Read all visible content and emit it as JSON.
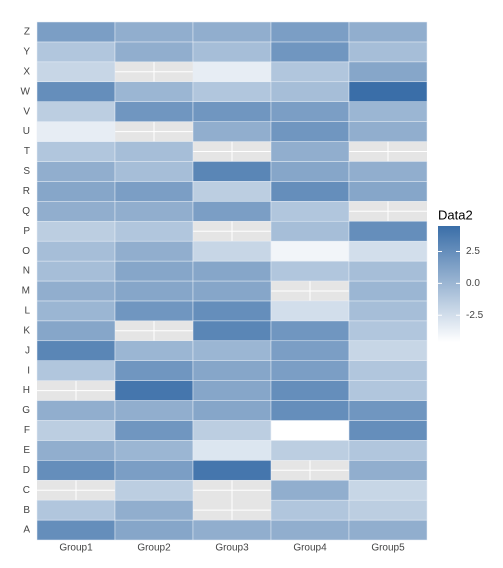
{
  "chart_data": {
    "type": "heatmap",
    "x": [
      "Group1",
      "Group2",
      "Group3",
      "Group4",
      "Group5"
    ],
    "y": [
      "A",
      "B",
      "C",
      "D",
      "E",
      "F",
      "G",
      "H",
      "I",
      "J",
      "K",
      "L",
      "M",
      "N",
      "O",
      "P",
      "Q",
      "R",
      "S",
      "T",
      "U",
      "V",
      "W",
      "X",
      "Y",
      "Z"
    ],
    "values": [
      [
        2.5,
        1,
        0.5,
        0.5,
        0.5
      ],
      [
        -1,
        0.5,
        null,
        -1,
        -1.5
      ],
      [
        null,
        -1.5,
        null,
        0.5,
        -2
      ],
      [
        2.5,
        1.5,
        4,
        null,
        0.5
      ],
      [
        0.5,
        0,
        -3,
        -1.5,
        -1
      ],
      [
        -1.5,
        2,
        -1.5,
        -4.6,
        2.5
      ],
      [
        0.5,
        0.5,
        1,
        2.5,
        2
      ],
      [
        null,
        4,
        1,
        2.5,
        -1
      ],
      [
        -1,
        2,
        1,
        1.5,
        -1
      ],
      [
        3,
        0,
        0,
        1.5,
        -2
      ],
      [
        1,
        null,
        3,
        2,
        -1
      ],
      [
        0,
        2,
        2.5,
        -2.5,
        -0.5
      ],
      [
        0.5,
        1,
        1,
        null,
        0
      ],
      [
        -0.5,
        1,
        1,
        -1,
        -0.5
      ],
      [
        -0.5,
        0.5,
        -2,
        -4,
        -2.5
      ],
      [
        -1.5,
        -1,
        null,
        -0.5,
        2.5
      ],
      [
        0.5,
        0.5,
        1.5,
        -1,
        null
      ],
      [
        1,
        1.5,
        -1.5,
        2.5,
        1
      ],
      [
        0.5,
        -0.5,
        3,
        1,
        0.5
      ],
      [
        -1,
        -0.5,
        null,
        0.5,
        null
      ],
      [
        -3.5,
        null,
        0.5,
        2,
        0.5
      ],
      [
        -1.5,
        2,
        2,
        1.5,
        0
      ],
      [
        2.5,
        0,
        -1,
        -0.5,
        4.5
      ],
      [
        -2,
        null,
        -3.5,
        -1,
        1
      ],
      [
        -1,
        0.5,
        -0.5,
        2,
        -0.5
      ],
      [
        1.5,
        0.5,
        0.5,
        1.5,
        0.5
      ]
    ],
    "legend_title": "Data2",
    "zlim": [
      -4.6,
      4.5
    ],
    "zticks": [
      2.5,
      {
        "value": 0,
        "label": "0.0"
      },
      {
        "value": -2.5,
        "label": "-2.5"
      }
    ],
    "low_color": "#ffffff",
    "high_color": "#3a6ea8",
    "na_color": "#e5e5e5"
  }
}
